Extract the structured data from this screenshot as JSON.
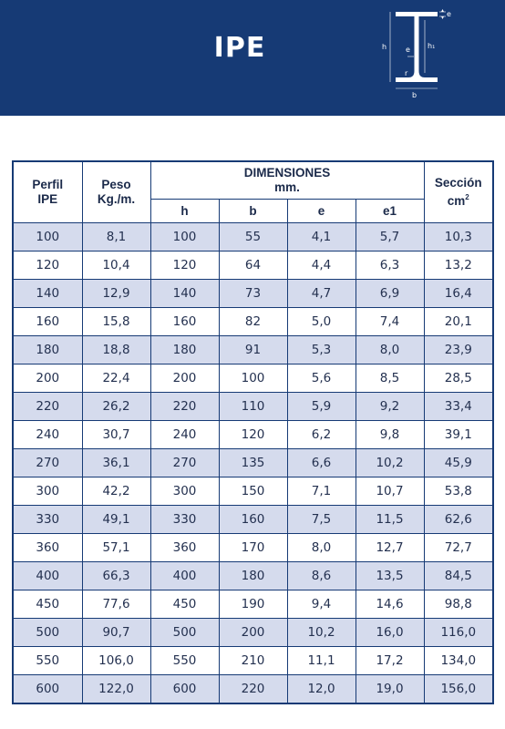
{
  "header": {
    "title": "IPE",
    "bg_color": "#163a75",
    "diagram_labels": {
      "e": "e",
      "h": "h",
      "h1": "h₁",
      "e_web": "e",
      "r": "r",
      "b": "b"
    }
  },
  "table": {
    "col_perfil": [
      "Perfil",
      "IPE"
    ],
    "col_peso": [
      "Peso",
      "Kg./m."
    ],
    "col_dimensiones": [
      "DIMENSIONES",
      "mm."
    ],
    "col_seccion_word": "Sección",
    "col_seccion_unit": "cm",
    "col_seccion_exp": "2",
    "dim_sub": [
      "h",
      "b",
      "e",
      "e1"
    ],
    "rows": [
      [
        "100",
        "8,1",
        "100",
        "55",
        "4,1",
        "5,7",
        "10,3"
      ],
      [
        "120",
        "10,4",
        "120",
        "64",
        "4,4",
        "6,3",
        "13,2"
      ],
      [
        "140",
        "12,9",
        "140",
        "73",
        "4,7",
        "6,9",
        "16,4"
      ],
      [
        "160",
        "15,8",
        "160",
        "82",
        "5,0",
        "7,4",
        "20,1"
      ],
      [
        "180",
        "18,8",
        "180",
        "91",
        "5,3",
        "8,0",
        "23,9"
      ],
      [
        "200",
        "22,4",
        "200",
        "100",
        "5,6",
        "8,5",
        "28,5"
      ],
      [
        "220",
        "26,2",
        "220",
        "110",
        "5,9",
        "9,2",
        "33,4"
      ],
      [
        "240",
        "30,7",
        "240",
        "120",
        "6,2",
        "9,8",
        "39,1"
      ],
      [
        "270",
        "36,1",
        "270",
        "135",
        "6,6",
        "10,2",
        "45,9"
      ],
      [
        "300",
        "42,2",
        "300",
        "150",
        "7,1",
        "10,7",
        "53,8"
      ],
      [
        "330",
        "49,1",
        "330",
        "160",
        "7,5",
        "11,5",
        "62,6"
      ],
      [
        "360",
        "57,1",
        "360",
        "170",
        "8,0",
        "12,7",
        "72,7"
      ],
      [
        "400",
        "66,3",
        "400",
        "180",
        "8,6",
        "13,5",
        "84,5"
      ],
      [
        "450",
        "77,6",
        "450",
        "190",
        "9,4",
        "14,6",
        "98,8"
      ],
      [
        "500",
        "90,7",
        "500",
        "200",
        "10,2",
        "16,0",
        "116,0"
      ],
      [
        "550",
        "106,0",
        "550",
        "210",
        "11,1",
        "17,2",
        "134,0"
      ],
      [
        "600",
        "122,0",
        "600",
        "220",
        "12,0",
        "19,0",
        "156,0"
      ]
    ]
  }
}
